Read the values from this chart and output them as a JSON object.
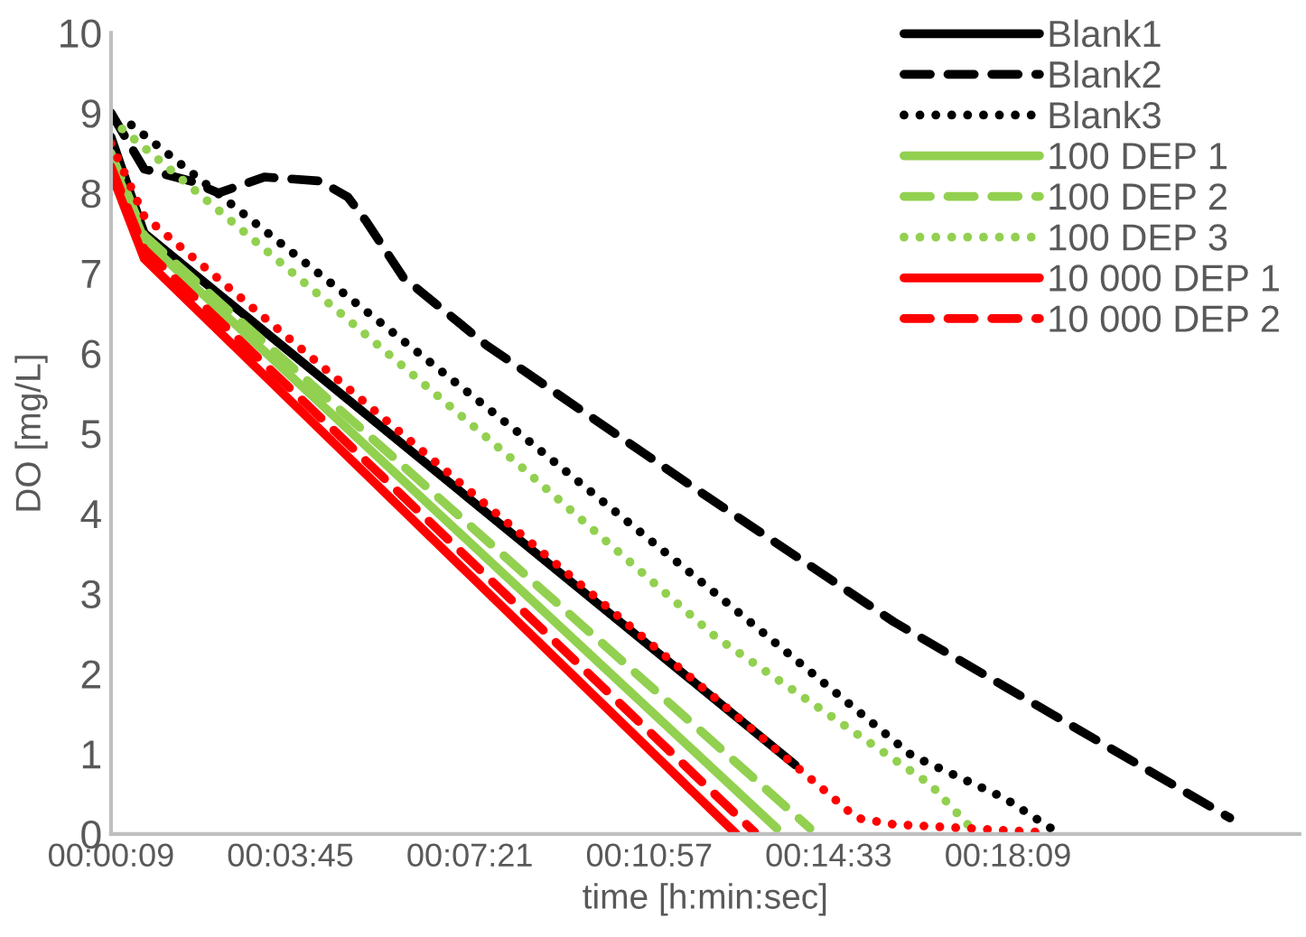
{
  "chart_data": {
    "type": "line",
    "xlabel": "time [h:min:sec]",
    "ylabel": "DO [mg/L]",
    "xlim": [
      0.0025,
      0.4
    ],
    "ylim": [
      0,
      10
    ],
    "yticks": [
      0,
      1,
      2,
      3,
      4,
      5,
      6,
      7,
      8,
      9,
      10
    ],
    "xticks": [
      {
        "value": 0.0025,
        "label": "00:00:09"
      },
      {
        "value": 0.0625,
        "label": "00:03:45"
      },
      {
        "value": 0.1225,
        "label": "00:07:21"
      },
      {
        "value": 0.1825,
        "label": "00:10:57"
      },
      {
        "value": 0.2425,
        "label": "00:14:33"
      },
      {
        "value": 0.3025,
        "label": "00:18:09"
      }
    ],
    "grid": false,
    "legend": "top right",
    "series": [
      {
        "name": "Blank1",
        "color": "#000000",
        "line_style": "solid",
        "x": [
          0.0025,
          0.0136,
          0.2314
        ],
        "values": [
          8.7,
          7.5,
          0.86
        ]
      },
      {
        "name": "Blank2",
        "color": "#000000",
        "line_style": "dashed",
        "x": [
          0.0025,
          0.0136,
          0.0291,
          0.0384,
          0.0538,
          0.0724,
          0.0817,
          0.0878,
          0.1002,
          0.1281,
          0.2023,
          0.2642,
          0.3767
        ],
        "values": [
          9.0,
          8.3,
          8.15,
          8.0,
          8.2,
          8.15,
          7.95,
          7.65,
          6.95,
          6.1,
          4.2,
          2.65,
          0.2
        ]
      },
      {
        "name": "Blank3",
        "color": "#000000",
        "line_style": "dotted",
        "x": [
          0.0093,
          0.0786,
          0.1404,
          0.2054,
          0.2703,
          0.3012,
          0.3198
        ],
        "values": [
          8.85,
          6.8,
          4.96,
          2.98,
          0.98,
          0.45,
          0.0
        ]
      },
      {
        "name": "100 DEP 1",
        "color": "#92d050",
        "line_style": "solid",
        "x": [
          0.0025,
          0.0136,
          0.2252
        ],
        "values": [
          8.42,
          7.42,
          0.07
        ]
      },
      {
        "name": "100 DEP 2",
        "color": "#92d050",
        "line_style": "dashed",
        "x": [
          0.0025,
          0.0136,
          0.2363
        ],
        "values": [
          8.5,
          7.47,
          0.07
        ]
      },
      {
        "name": "100 DEP 3",
        "color": "#92d050",
        "line_style": "dotted",
        "x": [
          0.0062,
          0.0786,
          0.1404,
          0.2047,
          0.2765,
          0.292
        ],
        "values": [
          8.8,
          6.52,
          4.56,
          2.46,
          0.62,
          0.0
        ]
      },
      {
        "name": "10 000 DEP 1",
        "color": "#ff0000",
        "line_style": "solid",
        "x": [
          0.0025,
          0.0136,
          0.2116
        ],
        "values": [
          8.26,
          7.18,
          0.0
        ]
      },
      {
        "name": "10 000 DEP 2",
        "color": "#ff0000",
        "line_style": "dashed",
        "x": [
          0.0025,
          0.0136,
          0.2178
        ],
        "values": [
          8.33,
          7.3,
          0.02
        ]
      },
      {
        "color": "#ff0000",
        "line_style": "dotted",
        "x": [
          0.0025,
          0.0136,
          0.2425,
          0.2518,
          0.2642,
          0.3137
        ],
        "values": [
          8.62,
          7.71,
          0.5,
          0.2,
          0.12,
          0.02
        ]
      }
    ]
  }
}
